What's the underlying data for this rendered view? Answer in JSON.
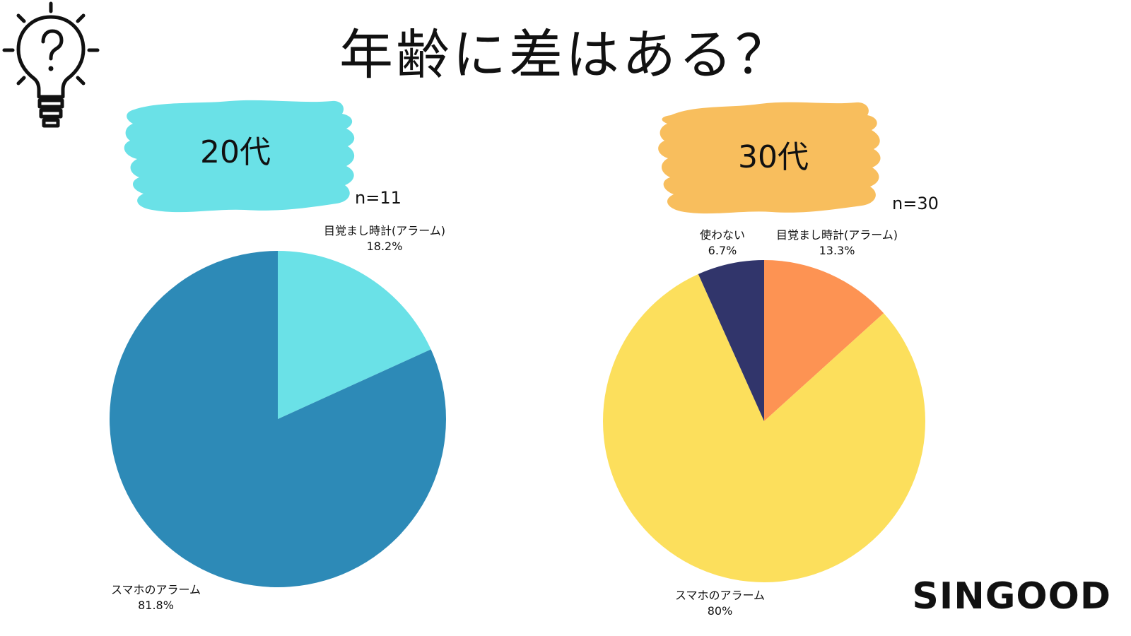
{
  "title": "年齢に差はある？",
  "brand": "SINGOOD",
  "icons": {
    "header": "lightbulb-question-icon"
  },
  "colors": {
    "blob_20s": "#6ae1e7",
    "blob_30s": "#f8be5d",
    "slice_20s_alarm_clock": "#6ae1e7",
    "slice_20s_smartphone": "#2d8ab7",
    "slice_30s_alarm_clock": "#fd9353",
    "slice_30s_smartphone": "#fcdf5c",
    "slice_30s_none": "#31356b"
  },
  "chart_data": [
    {
      "type": "pie",
      "title": "20代",
      "sample_size": "n=11",
      "slices": [
        {
          "name": "目覚まし時計(アラーム)",
          "value": 18.2,
          "label": "18.2%"
        },
        {
          "name": "スマホのアラーム",
          "value": 81.8,
          "label": "81.8%"
        }
      ]
    },
    {
      "type": "pie",
      "title": "30代",
      "sample_size": "n=30",
      "slices": [
        {
          "name": "目覚まし時計(アラーム)",
          "value": 13.3,
          "label": "13.3%"
        },
        {
          "name": "スマホのアラーム",
          "value": 80,
          "label": "80%"
        },
        {
          "name": "使わない",
          "value": 6.7,
          "label": "6.7%"
        }
      ]
    }
  ]
}
